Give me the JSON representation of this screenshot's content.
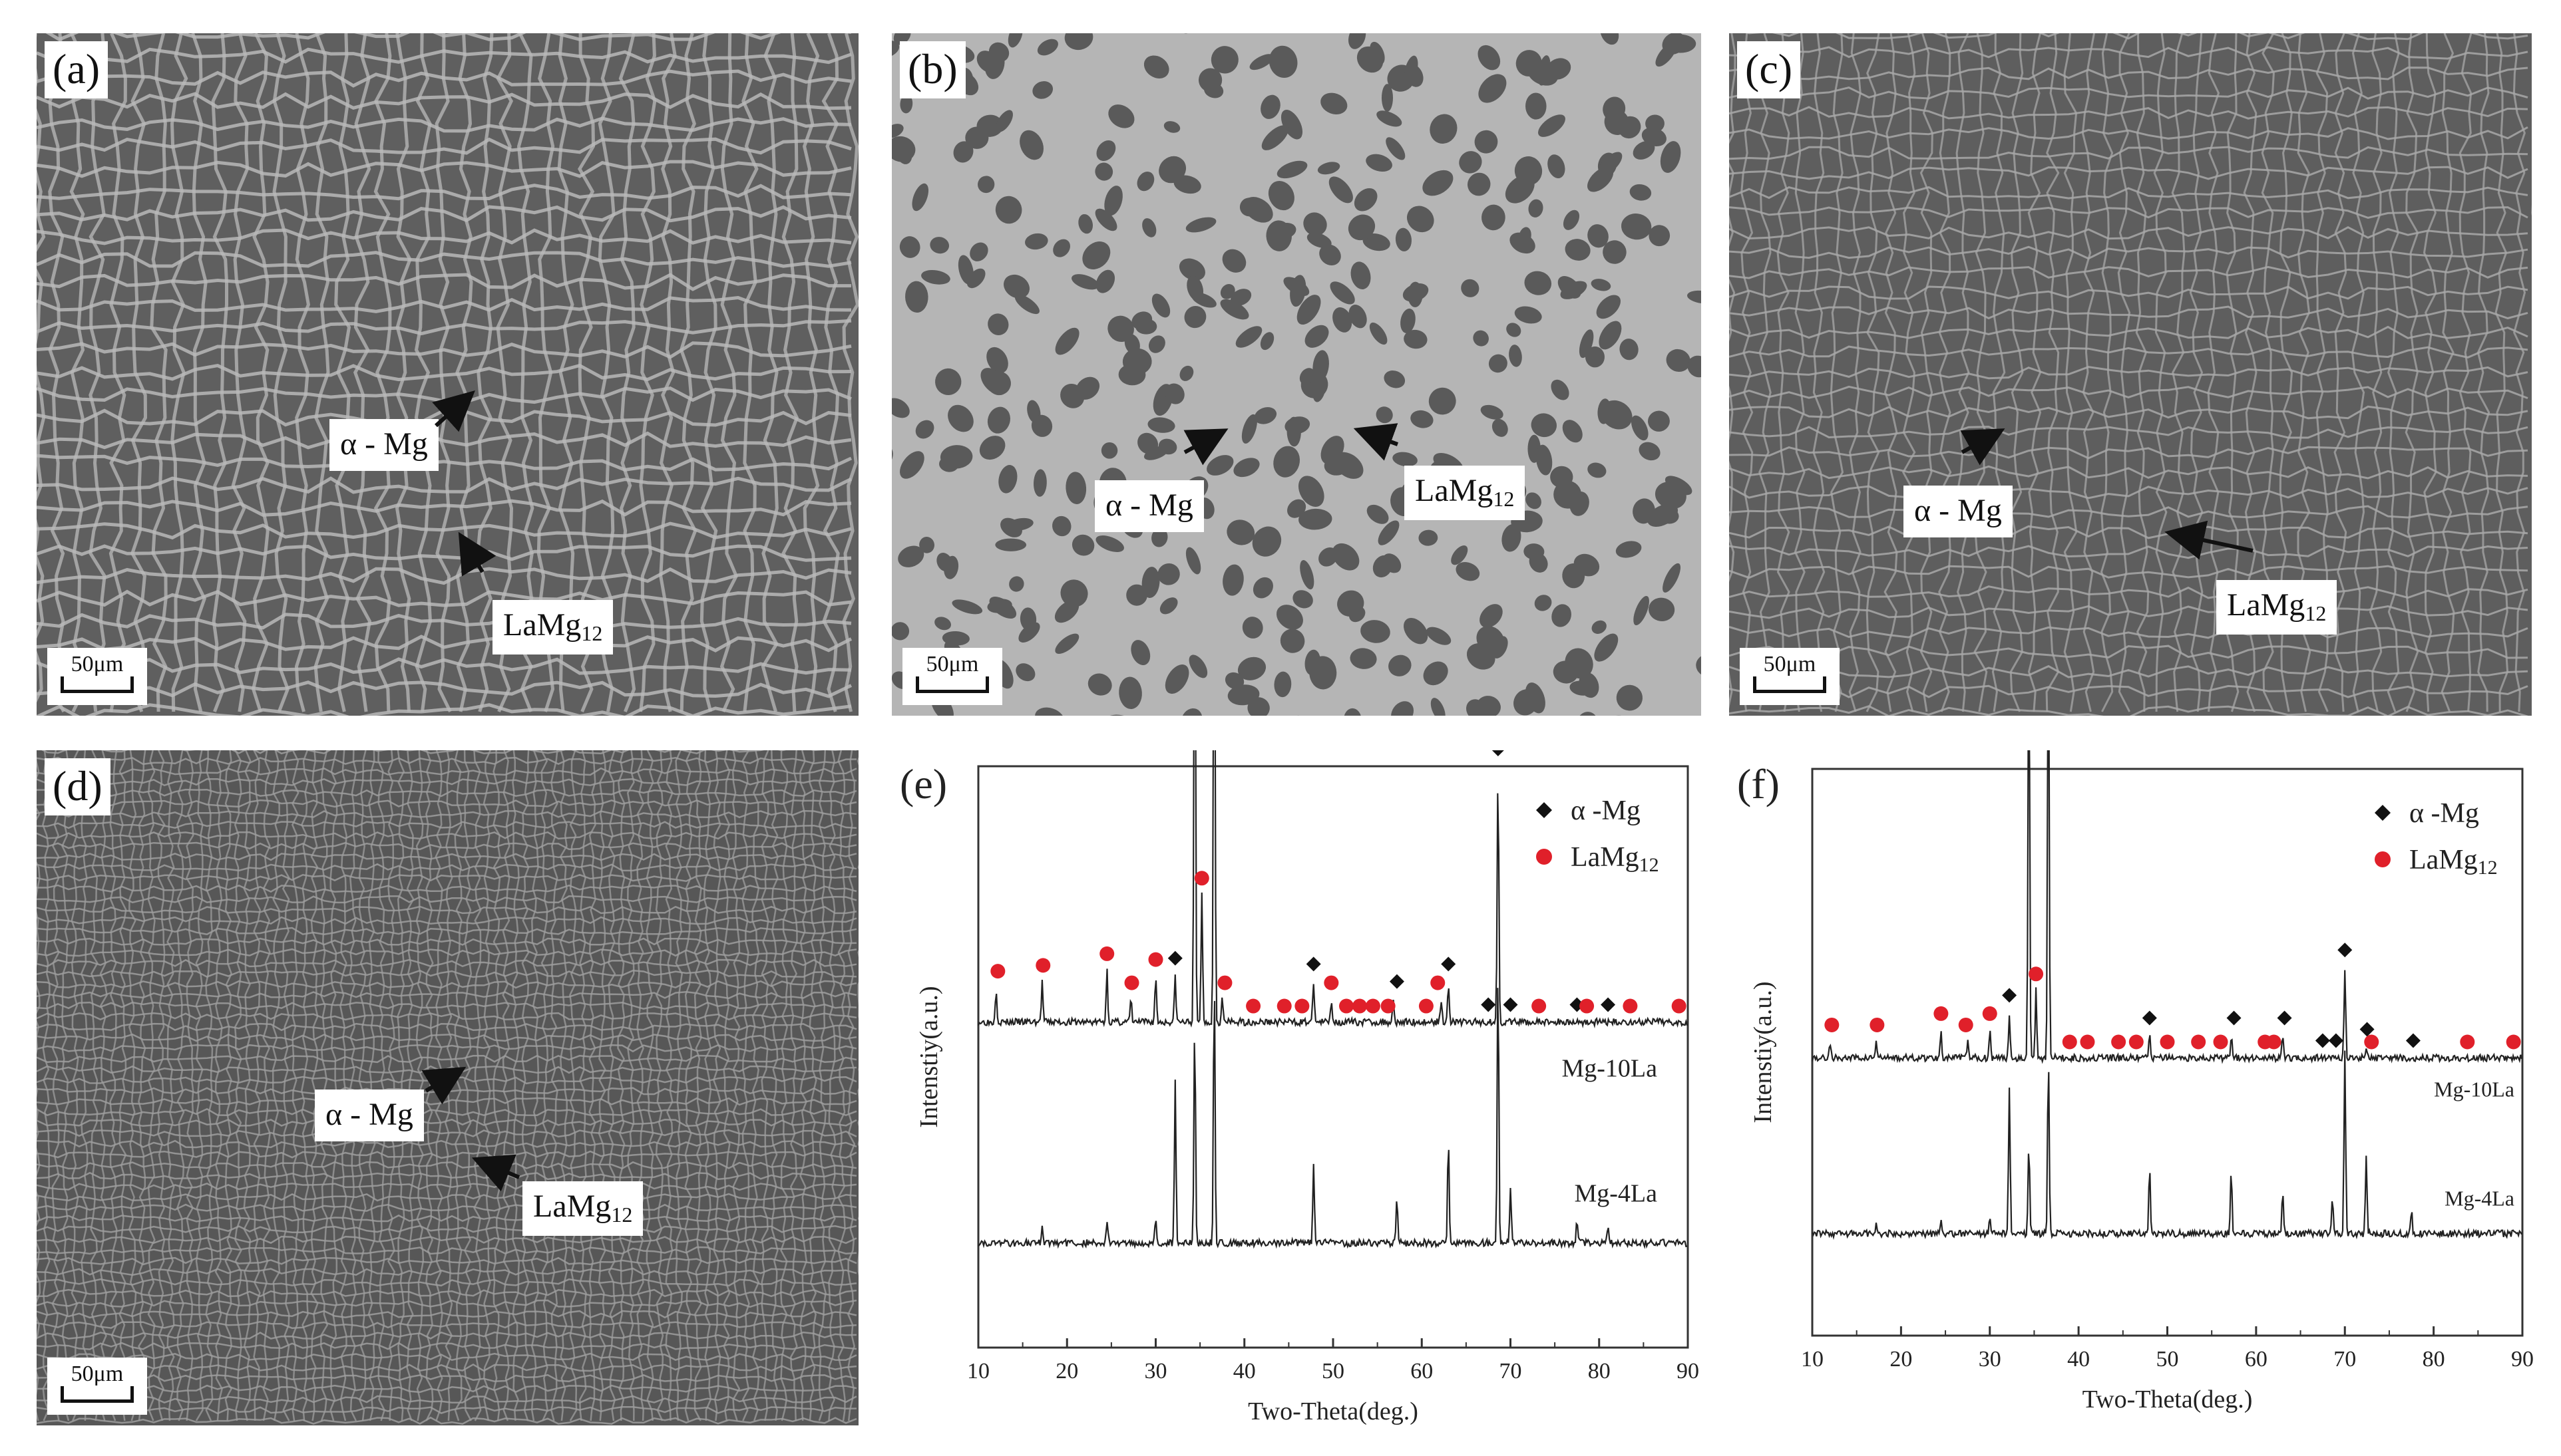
{
  "figure": {
    "panels": [
      {
        "id": "a",
        "label": "(a)",
        "scalebar": "50μm",
        "callouts": [
          {
            "text": "α - Mg",
            "sub": ""
          },
          {
            "text": "LaMg",
            "sub": "12"
          }
        ]
      },
      {
        "id": "b",
        "label": "(b)",
        "scalebar": "50μm",
        "callouts": [
          {
            "text": "α - Mg",
            "sub": ""
          },
          {
            "text": "LaMg",
            "sub": "12"
          }
        ]
      },
      {
        "id": "c",
        "label": "(c)",
        "scalebar": "50μm",
        "callouts": [
          {
            "text": "α - Mg",
            "sub": ""
          },
          {
            "text": "LaMg",
            "sub": "12"
          }
        ]
      },
      {
        "id": "d",
        "label": "(d)",
        "scalebar": "50μm",
        "callouts": [
          {
            "text": "α - Mg",
            "sub": ""
          },
          {
            "text": "LaMg",
            "sub": "12"
          }
        ]
      }
    ],
    "colors": {
      "alpha_marker": "#111111",
      "lamg_marker": "#e0202a",
      "micro_bg_dark": "#5c5c5c",
      "micro_bg_light": "#b8b8b8"
    }
  },
  "chart_data": [
    {
      "type": "line",
      "panel_label": "(e)",
      "xlabel": "Two-Theta(deg.)",
      "ylabel": "Intenstiy(a.u.)",
      "xlim": [
        10,
        90
      ],
      "xticks": [
        10,
        20,
        30,
        40,
        50,
        60,
        70,
        80,
        90
      ],
      "legend": [
        {
          "name": "α -Mg",
          "marker": "diamond"
        },
        {
          "name": "LaMg",
          "sub": "12",
          "marker": "circle"
        }
      ],
      "legend_position": "top-right",
      "series": [
        {
          "name": "Mg-10La",
          "baseline": 0.56,
          "peaks": [
            [
              12.0,
              0.06
            ],
            [
              17.2,
              0.07
            ],
            [
              24.5,
              0.09
            ],
            [
              27.2,
              0.04
            ],
            [
              30.0,
              0.08
            ],
            [
              32.2,
              0.08
            ],
            [
              34.4,
              0.92
            ],
            [
              35.2,
              0.22
            ],
            [
              36.6,
              0.95
            ],
            [
              37.5,
              0.04
            ],
            [
              47.8,
              0.07
            ],
            [
              49.8,
              0.04
            ],
            [
              56.8,
              0.04
            ],
            [
              62.2,
              0.04
            ],
            [
              63.0,
              0.07
            ],
            [
              68.6,
              0.44
            ]
          ],
          "diamond_markers": [
            32.2,
            34.4,
            36.6,
            47.8,
            57.2,
            63.0,
            68.6,
            67.5,
            70.0,
            77.5,
            81.0
          ],
          "circle_markers": [
            12.2,
            17.3,
            24.5,
            27.3,
            30.0,
            35.2,
            37.8,
            41.0,
            44.5,
            46.5,
            49.8,
            51.5,
            53.0,
            54.5,
            56.2,
            60.5,
            61.8,
            73.2,
            78.6,
            83.5,
            89.0
          ]
        },
        {
          "name": "Mg-4La",
          "baseline": 0.18,
          "peaks": [
            [
              17.2,
              0.03
            ],
            [
              24.5,
              0.04
            ],
            [
              30.0,
              0.04
            ],
            [
              32.2,
              0.28
            ],
            [
              34.4,
              0.38
            ],
            [
              36.6,
              0.46
            ],
            [
              47.8,
              0.13
            ],
            [
              57.2,
              0.08
            ],
            [
              63.0,
              0.18
            ],
            [
              68.6,
              0.48
            ],
            [
              70.0,
              0.1
            ],
            [
              77.5,
              0.04
            ],
            [
              81.0,
              0.03
            ]
          ]
        }
      ]
    },
    {
      "type": "line",
      "panel_label": "(f)",
      "xlabel": "Two-Theta(deg.)",
      "ylabel": "Intenstiy(a.u.)",
      "xlim": [
        10,
        90
      ],
      "xticks": [
        10,
        20,
        30,
        40,
        50,
        60,
        70,
        80,
        90
      ],
      "legend": [
        {
          "name": "α -Mg",
          "marker": "diamond"
        },
        {
          "name": "LaMg",
          "sub": "12",
          "marker": "circle"
        }
      ],
      "legend_position": "top-right",
      "series": [
        {
          "name": "Mg-10La",
          "baseline": 0.49,
          "peaks": [
            [
              12.0,
              0.03
            ],
            [
              17.2,
              0.03
            ],
            [
              24.5,
              0.05
            ],
            [
              27.5,
              0.03
            ],
            [
              30.0,
              0.05
            ],
            [
              32.2,
              0.08
            ],
            [
              34.4,
              0.77
            ],
            [
              35.2,
              0.12
            ],
            [
              36.6,
              0.79
            ],
            [
              48.0,
              0.04
            ],
            [
              57.2,
              0.04
            ],
            [
              63.0,
              0.04
            ],
            [
              70.0,
              0.16
            ],
            [
              72.4,
              0.02
            ]
          ],
          "diamond_markers": [
            32.2,
            34.4,
            36.6,
            48.0,
            57.5,
            63.2,
            67.5,
            69.0,
            70.0,
            72.5,
            77.7
          ],
          "circle_markers": [
            12.2,
            17.3,
            24.5,
            27.3,
            30.0,
            35.2,
            39.0,
            41.0,
            44.5,
            46.5,
            50.0,
            53.5,
            56.0,
            61.0,
            62.0,
            73.0,
            83.8,
            89.0
          ]
        },
        {
          "name": "Mg-4La",
          "baseline": 0.18,
          "peaks": [
            [
              17.2,
              0.02
            ],
            [
              24.5,
              0.03
            ],
            [
              30.0,
              0.03
            ],
            [
              32.2,
              0.26
            ],
            [
              34.4,
              0.16
            ],
            [
              36.6,
              0.32
            ],
            [
              48.0,
              0.12
            ],
            [
              57.2,
              0.11
            ],
            [
              63.0,
              0.07
            ],
            [
              68.6,
              0.06
            ],
            [
              70.0,
              0.32
            ],
            [
              72.4,
              0.14
            ],
            [
              77.5,
              0.04
            ]
          ]
        }
      ]
    }
  ]
}
